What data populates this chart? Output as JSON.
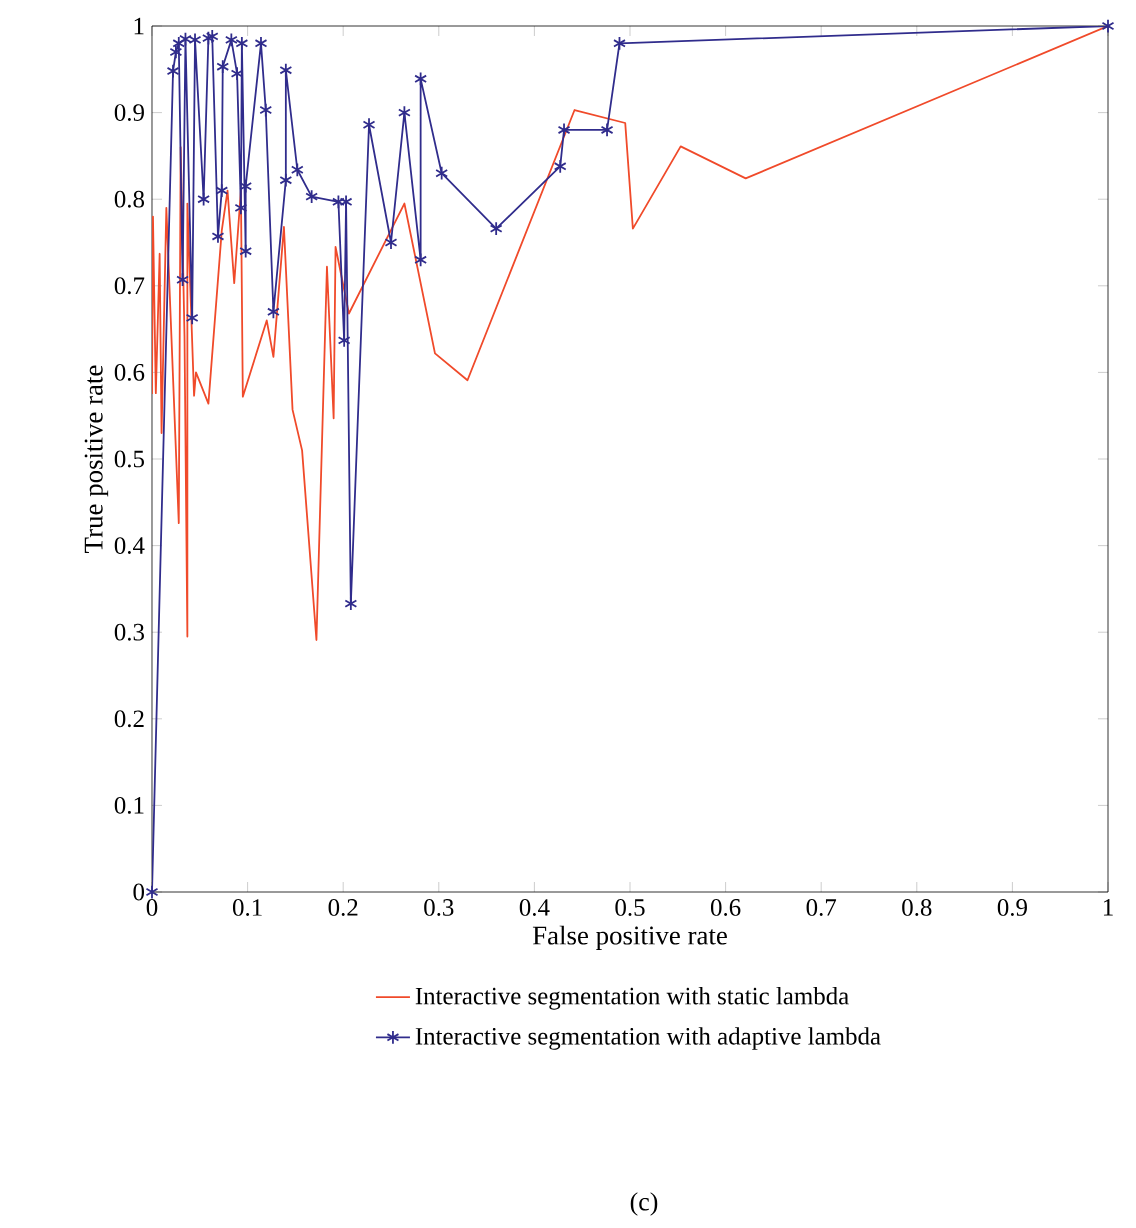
{
  "chart_data": {
    "type": "line",
    "xlabel": "False positive rate",
    "ylabel": "True positive rate",
    "xlim": [
      0,
      1
    ],
    "ylim": [
      0,
      1
    ],
    "xticks": [
      0,
      0.1,
      0.2,
      0.3,
      0.4,
      0.5,
      0.6,
      0.7,
      0.8,
      0.9,
      1
    ],
    "yticks": [
      0,
      0.1,
      0.2,
      0.3,
      0.4,
      0.5,
      0.6,
      0.7,
      0.8,
      0.9,
      1
    ],
    "grid": false,
    "legend": "bottom",
    "line_style": "solid",
    "annotations": [
      "(c)"
    ],
    "series": [
      {
        "name": "Interactive segmentation with static lambda",
        "color": "#f04a2a",
        "marker": "none",
        "x": [
          0,
          0.001,
          0.004,
          0.008,
          0.01,
          0.015,
          0.028,
          0.03,
          0.034,
          0.037,
          0.037,
          0.044,
          0.046,
          0.059,
          0.073,
          0.079,
          0.086,
          0.093,
          0.095,
          0.12,
          0.127,
          0.138,
          0.147,
          0.157,
          0.172,
          0.183,
          0.19,
          0.192,
          0.206,
          0.264,
          0.296,
          0.33,
          0.442,
          0.495,
          0.503,
          0.553,
          0.621,
          1
        ],
        "values": [
          0.575,
          0.78,
          0.576,
          0.737,
          0.53,
          0.79,
          0.426,
          0.86,
          0.642,
          0.295,
          0.795,
          0.573,
          0.6,
          0.564,
          0.764,
          0.81,
          0.703,
          0.81,
          0.572,
          0.66,
          0.618,
          0.768,
          0.557,
          0.51,
          0.291,
          0.722,
          0.547,
          0.745,
          0.668,
          0.795,
          0.622,
          0.591,
          0.903,
          0.888,
          0.766,
          0.861,
          0.824,
          1
        ]
      },
      {
        "name": "Interactive segmentation with adaptive lambda",
        "color": "#302c8c",
        "marker": "cross",
        "x": [
          0,
          0.022,
          0.025,
          0.028,
          0.032,
          0.035,
          0.042,
          0.045,
          0.054,
          0.059,
          0.063,
          0.069,
          0.073,
          0.074,
          0.083,
          0.089,
          0.093,
          0.094,
          0.098,
          0.098,
          0.114,
          0.119,
          0.127,
          0.14,
          0.14,
          0.152,
          0.167,
          0.195,
          0.201,
          0.203,
          0.208,
          0.227,
          0.25,
          0.264,
          0.281,
          0.281,
          0.303,
          0.36,
          0.427,
          0.431,
          0.476,
          0.489,
          1
        ],
        "values": [
          0,
          0.948,
          0.97,
          0.98,
          0.707,
          0.985,
          0.663,
          0.984,
          0.8,
          0.986,
          0.988,
          0.757,
          0.81,
          0.953,
          0.984,
          0.945,
          0.79,
          0.98,
          0.74,
          0.815,
          0.98,
          0.903,
          0.67,
          0.822,
          0.949,
          0.834,
          0.803,
          0.797,
          0.637,
          0.797,
          0.333,
          0.886,
          0.75,
          0.9,
          0.73,
          0.939,
          0.83,
          0.766,
          0.838,
          0.88,
          0.88,
          0.98,
          1
        ]
      }
    ]
  }
}
